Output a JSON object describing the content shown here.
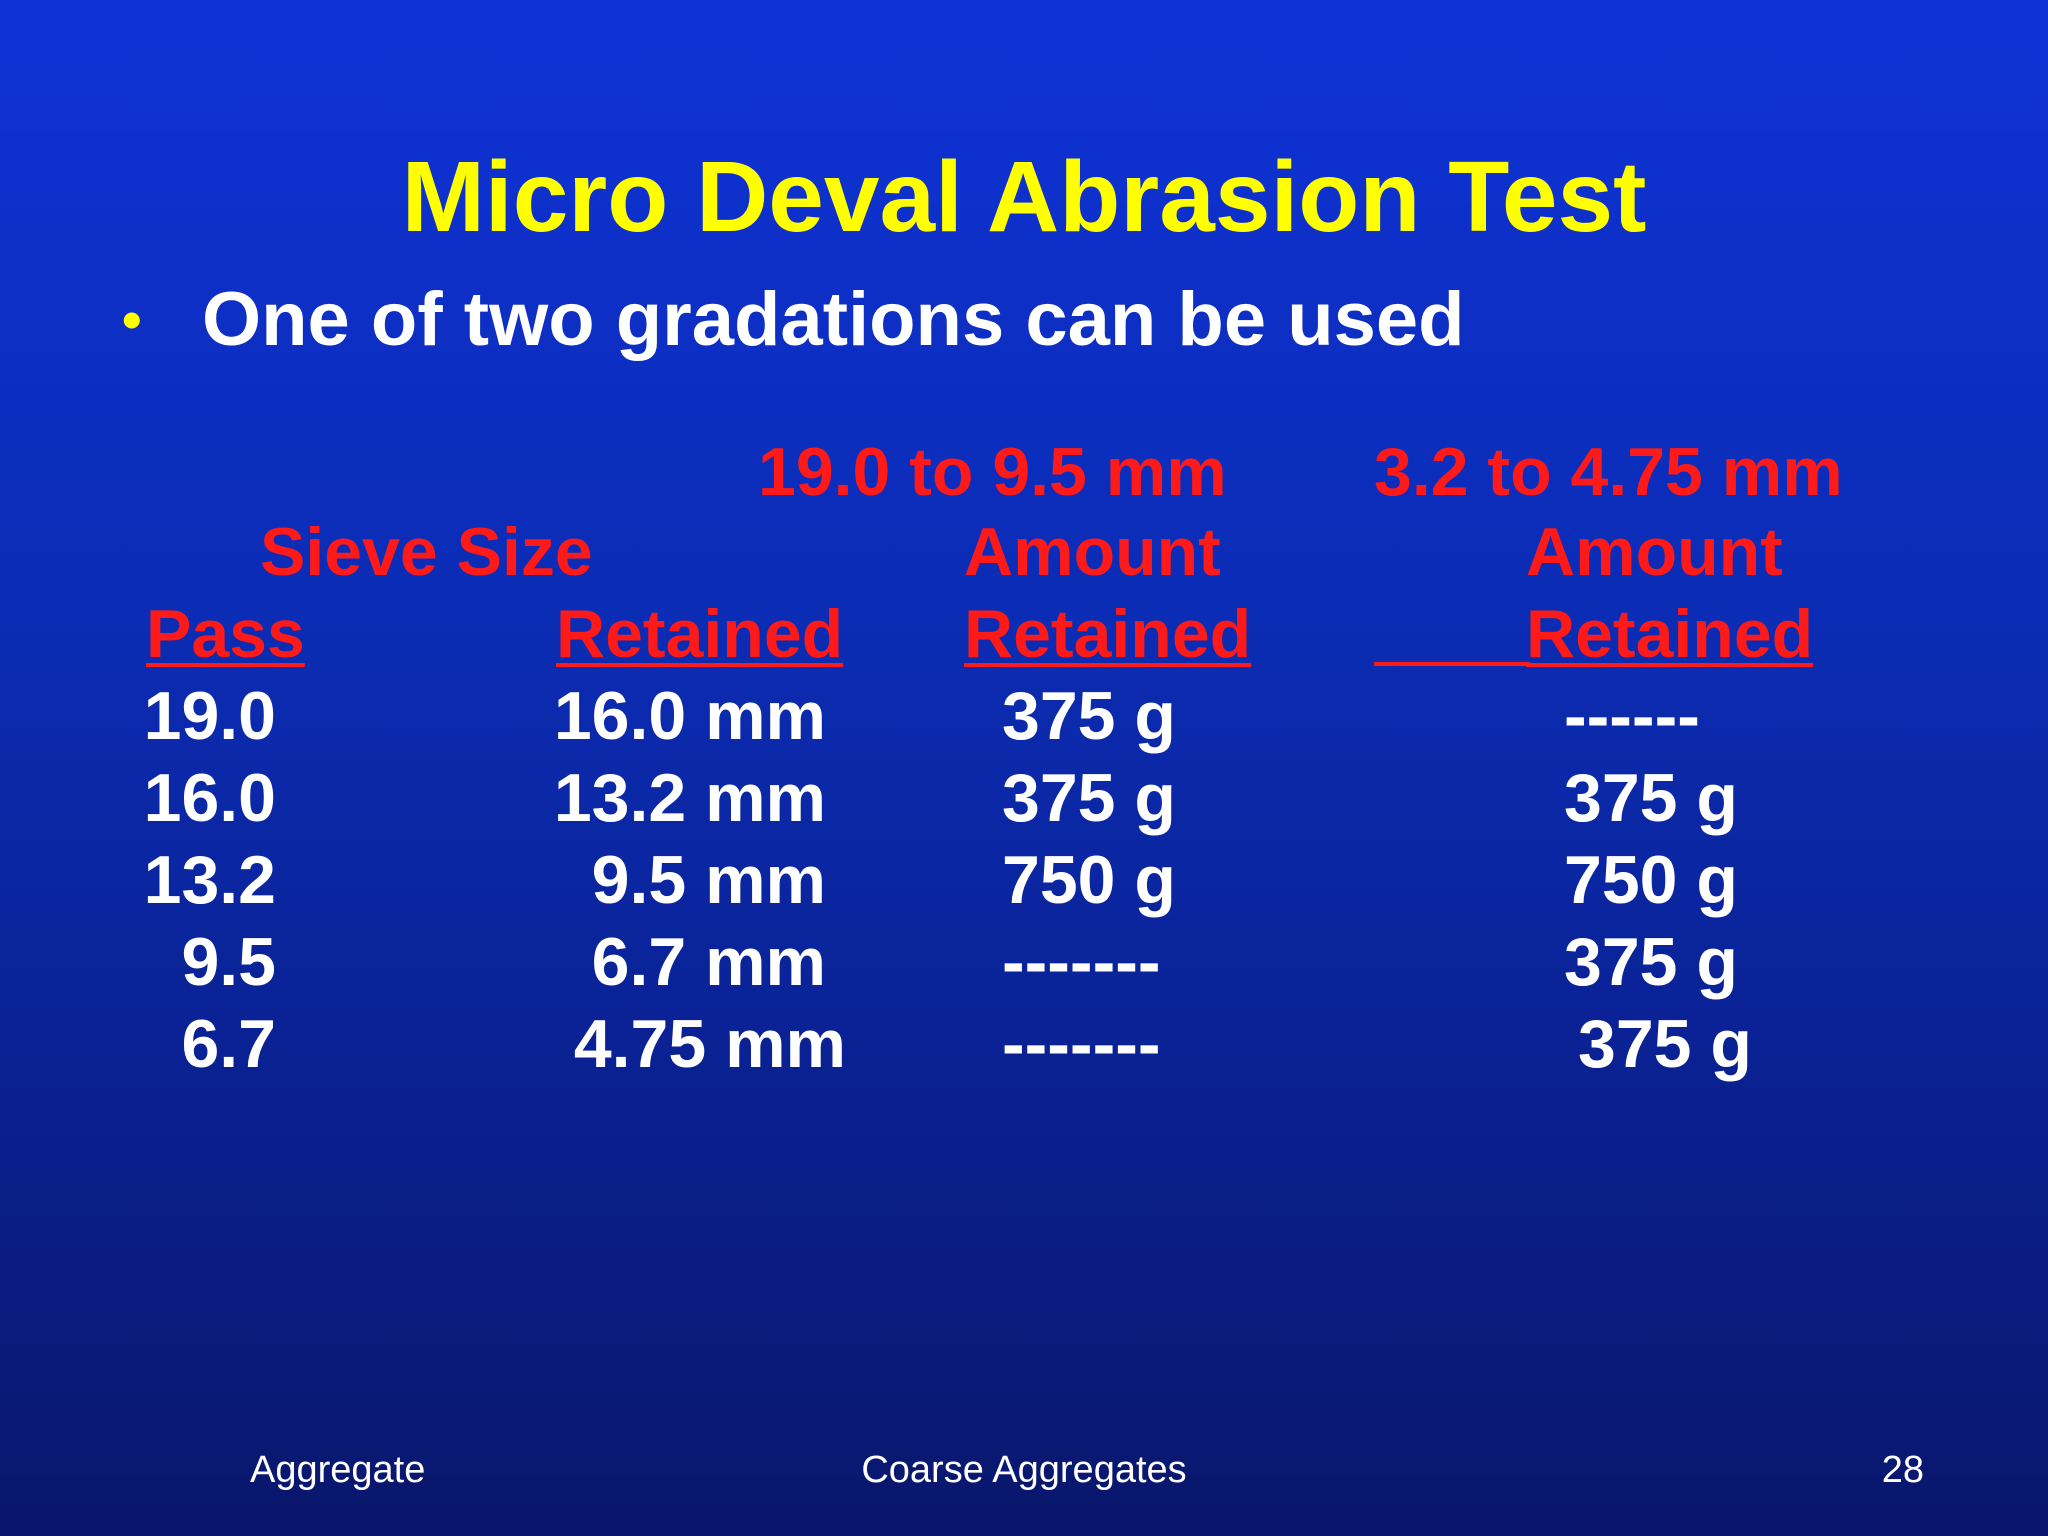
{
  "slide": {
    "title": "Micro Deval Abrasion Test",
    "bullet": "One of two gradations can be used",
    "bullet_symbol": "•",
    "title_color": "#ffff00",
    "header_color": "#ff1a1a",
    "text_color": "#ffffff"
  },
  "table": {
    "group_headers": {
      "sieve_size": "Sieve Size",
      "gradation_a": "19.0 to 9.5 mm",
      "gradation_b": "3.2 to 4.75 mm",
      "amount_a": "Amount",
      "amount_b": "Amount"
    },
    "columns": [
      "Pass",
      "Retained",
      "Retained",
      "Retained"
    ],
    "rows": [
      [
        "19.0",
        "16.0 mm",
        "375 g",
        "------"
      ],
      [
        "16.0",
        "13.2 mm",
        "375 g",
        "375 g"
      ],
      [
        "13.2",
        "9.5 mm",
        "750 g",
        "750 g"
      ],
      [
        "9.5",
        "6.7 mm",
        "-------",
        "375 g"
      ],
      [
        "6.7",
        "4.75 mm",
        "-------",
        "375 g"
      ]
    ]
  },
  "footer": {
    "left": "Aggregate",
    "center": "Coarse Aggregates",
    "page_number": "28"
  }
}
